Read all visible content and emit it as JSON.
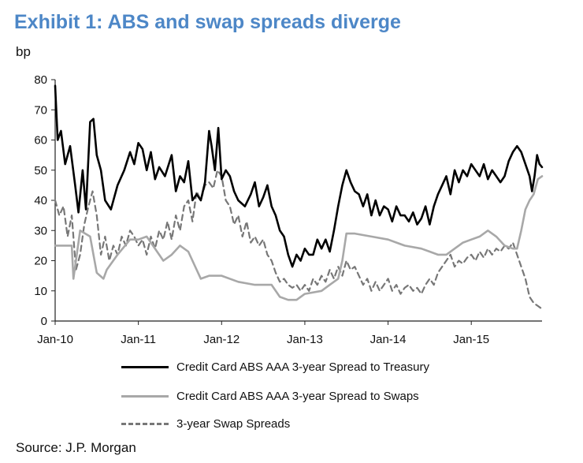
{
  "title": "Exhibit 1: ABS and swap spreads diverge",
  "source": "Source: J.P. Morgan",
  "colors": {
    "title": "#4d87c7",
    "series_treasury": "#000000",
    "series_swaps": "#a8a8a8",
    "series_swap_spreads": "#777777"
  },
  "chart_data": {
    "type": "line",
    "title": "Exhibit 1: ABS and swap spreads diverge",
    "ylabel": "bp",
    "xlabel": "",
    "ylim": [
      0,
      80
    ],
    "yticks": [
      0,
      10,
      20,
      30,
      40,
      50,
      60,
      70,
      80
    ],
    "xlim": [
      2010.0,
      2015.85
    ],
    "xticks": [
      {
        "value": 2010.0,
        "label": "Jan-10"
      },
      {
        "value": 2011.0,
        "label": "Jan-11"
      },
      {
        "value": 2012.0,
        "label": "Jan-12"
      },
      {
        "value": 2013.0,
        "label": "Jan-13"
      },
      {
        "value": 2014.0,
        "label": "Jan-14"
      },
      {
        "value": 2015.0,
        "label": "Jan-15"
      }
    ],
    "series": [
      {
        "name": "Credit Card ABS AAA 3-year Spread to Treasury",
        "style": "solid-black",
        "x": [
          2010.0,
          2010.03,
          2010.07,
          2010.12,
          2010.18,
          2010.24,
          2010.28,
          2010.33,
          2010.37,
          2010.42,
          2010.46,
          2010.5,
          2010.55,
          2010.6,
          2010.67,
          2010.75,
          2010.83,
          2010.9,
          2010.95,
          2011.0,
          2011.05,
          2011.1,
          2011.15,
          2011.2,
          2011.25,
          2011.32,
          2011.4,
          2011.45,
          2011.5,
          2011.55,
          2011.6,
          2011.65,
          2011.7,
          2011.75,
          2011.8,
          2011.85,
          2011.88,
          2011.92,
          2011.96,
          2012.0,
          2012.05,
          2012.1,
          2012.15,
          2012.2,
          2012.28,
          2012.35,
          2012.4,
          2012.45,
          2012.5,
          2012.55,
          2012.6,
          2012.65,
          2012.7,
          2012.75,
          2012.8,
          2012.85,
          2012.9,
          2012.95,
          2013.0,
          2013.05,
          2013.1,
          2013.15,
          2013.2,
          2013.25,
          2013.3,
          2013.35,
          2013.4,
          2013.45,
          2013.5,
          2013.55,
          2013.6,
          2013.65,
          2013.7,
          2013.75,
          2013.8,
          2013.85,
          2013.9,
          2013.95,
          2014.0,
          2014.05,
          2014.1,
          2014.15,
          2014.2,
          2014.25,
          2014.3,
          2014.35,
          2014.4,
          2014.45,
          2014.5,
          2014.55,
          2014.6,
          2014.65,
          2014.7,
          2014.75,
          2014.8,
          2014.85,
          2014.9,
          2014.95,
          2015.0,
          2015.05,
          2015.1,
          2015.15,
          2015.2,
          2015.25,
          2015.3,
          2015.35,
          2015.4,
          2015.45,
          2015.5,
          2015.55,
          2015.6,
          2015.65,
          2015.7,
          2015.73,
          2015.76,
          2015.79,
          2015.82,
          2015.85
        ],
        "values": [
          78,
          60,
          63,
          52,
          58,
          45,
          36,
          50,
          37,
          66,
          67,
          55,
          50,
          40,
          37,
          45,
          50,
          56,
          52,
          59,
          57,
          50,
          56,
          47,
          51,
          48,
          55,
          43,
          48,
          46,
          53,
          40,
          42,
          40,
          46,
          63,
          58,
          50,
          64,
          47,
          50,
          48,
          43,
          40,
          38,
          42,
          46,
          38,
          41,
          45,
          38,
          35,
          30,
          28,
          22,
          18,
          22,
          20,
          24,
          22,
          22,
          27,
          24,
          27,
          23,
          30,
          38,
          45,
          50,
          46,
          43,
          42,
          38,
          42,
          35,
          40,
          35,
          38,
          37,
          33,
          38,
          35,
          35,
          33,
          36,
          32,
          34,
          38,
          32,
          38,
          42,
          45,
          48,
          42,
          50,
          46,
          50,
          48,
          52,
          50,
          48,
          52,
          47,
          50,
          48,
          46,
          48,
          53,
          56,
          58,
          56,
          52,
          48,
          43,
          48,
          55,
          52,
          51
        ]
      },
      {
        "name": "Credit Card ABS AAA 3-year Spread to Swaps",
        "style": "solid-gray",
        "x": [
          2010.0,
          2010.1,
          2010.2,
          2010.22,
          2010.3,
          2010.42,
          2010.5,
          2010.58,
          2010.62,
          2010.75,
          2010.9,
          2011.0,
          2011.1,
          2011.2,
          2011.3,
          2011.4,
          2011.5,
          2011.6,
          2011.7,
          2011.75,
          2011.85,
          2012.0,
          2012.2,
          2012.4,
          2012.5,
          2012.6,
          2012.7,
          2012.8,
          2012.9,
          2013.0,
          2013.2,
          2013.3,
          2013.4,
          2013.45,
          2013.5,
          2013.6,
          2013.8,
          2014.0,
          2014.2,
          2014.4,
          2014.5,
          2014.6,
          2014.7,
          2014.8,
          2014.9,
          2015.0,
          2015.1,
          2015.2,
          2015.3,
          2015.4,
          2015.5,
          2015.55,
          2015.6,
          2015.65,
          2015.7,
          2015.75,
          2015.8,
          2015.85
        ],
        "values": [
          25,
          25,
          25,
          14,
          30,
          28,
          16,
          14,
          17,
          22,
          27,
          27,
          28,
          24,
          20,
          22,
          25,
          23,
          17,
          14,
          15,
          15,
          13,
          12,
          12,
          12,
          8,
          7,
          7,
          9,
          10,
          12,
          14,
          20,
          29,
          29,
          28,
          27,
          25,
          24,
          23,
          22,
          22,
          24,
          26,
          27,
          28,
          30,
          28,
          25,
          24,
          24,
          30,
          37,
          40,
          42,
          47,
          48
        ]
      },
      {
        "name": "3-year Swap Spreads",
        "style": "dashed-gray",
        "x": [
          2010.0,
          2010.05,
          2010.1,
          2010.15,
          2010.2,
          2010.25,
          2010.3,
          2010.35,
          2010.4,
          2010.45,
          2010.5,
          2010.55,
          2010.6,
          2010.65,
          2010.7,
          2010.75,
          2010.8,
          2010.85,
          2010.9,
          2010.95,
          2011.0,
          2011.05,
          2011.1,
          2011.15,
          2011.2,
          2011.25,
          2011.3,
          2011.35,
          2011.4,
          2011.45,
          2011.5,
          2011.55,
          2011.6,
          2011.65,
          2011.7,
          2011.75,
          2011.8,
          2011.85,
          2011.9,
          2011.95,
          2012.0,
          2012.05,
          2012.1,
          2012.15,
          2012.2,
          2012.25,
          2012.3,
          2012.35,
          2012.4,
          2012.45,
          2012.5,
          2012.55,
          2012.6,
          2012.65,
          2012.7,
          2012.75,
          2012.8,
          2012.85,
          2012.9,
          2012.95,
          2013.0,
          2013.05,
          2013.1,
          2013.15,
          2013.2,
          2013.25,
          2013.3,
          2013.35,
          2013.4,
          2013.45,
          2013.5,
          2013.55,
          2013.6,
          2013.65,
          2013.7,
          2013.75,
          2013.8,
          2013.85,
          2013.9,
          2013.95,
          2014.0,
          2014.05,
          2014.1,
          2014.15,
          2014.2,
          2014.25,
          2014.3,
          2014.35,
          2014.4,
          2014.45,
          2014.5,
          2014.55,
          2014.6,
          2014.65,
          2014.7,
          2014.75,
          2014.8,
          2014.85,
          2014.9,
          2014.95,
          2015.0,
          2015.05,
          2015.1,
          2015.15,
          2015.2,
          2015.25,
          2015.3,
          2015.35,
          2015.4,
          2015.45,
          2015.5,
          2015.55,
          2015.6,
          2015.65,
          2015.7,
          2015.75,
          2015.8,
          2015.85
        ],
        "values": [
          40,
          35,
          38,
          28,
          35,
          17,
          22,
          32,
          38,
          43,
          35,
          22,
          28,
          20,
          25,
          22,
          28,
          25,
          30,
          28,
          25,
          27,
          22,
          28,
          24,
          30,
          27,
          33,
          27,
          35,
          30,
          38,
          40,
          33,
          43,
          40,
          45,
          46,
          44,
          50,
          48,
          40,
          38,
          32,
          35,
          28,
          33,
          26,
          28,
          25,
          27,
          22,
          20,
          16,
          13,
          14,
          12,
          11,
          12,
          10,
          12,
          10,
          14,
          12,
          15,
          13,
          17,
          14,
          18,
          15,
          20,
          17,
          18,
          15,
          12,
          14,
          10,
          13,
          10,
          12,
          14,
          10,
          12,
          9,
          11,
          12,
          10,
          11,
          9,
          12,
          14,
          12,
          16,
          18,
          20,
          22,
          18,
          20,
          19,
          21,
          22,
          20,
          23,
          21,
          24,
          22,
          24,
          23,
          25,
          24,
          26,
          22,
          18,
          14,
          8,
          6,
          5,
          4
        ]
      }
    ]
  },
  "legend": [
    {
      "label": "Credit Card ABS AAA 3-year Spread to Treasury"
    },
    {
      "label": "Credit Card ABS AAA 3-year Spread to Swaps"
    },
    {
      "label": "3-year Swap Spreads"
    }
  ]
}
